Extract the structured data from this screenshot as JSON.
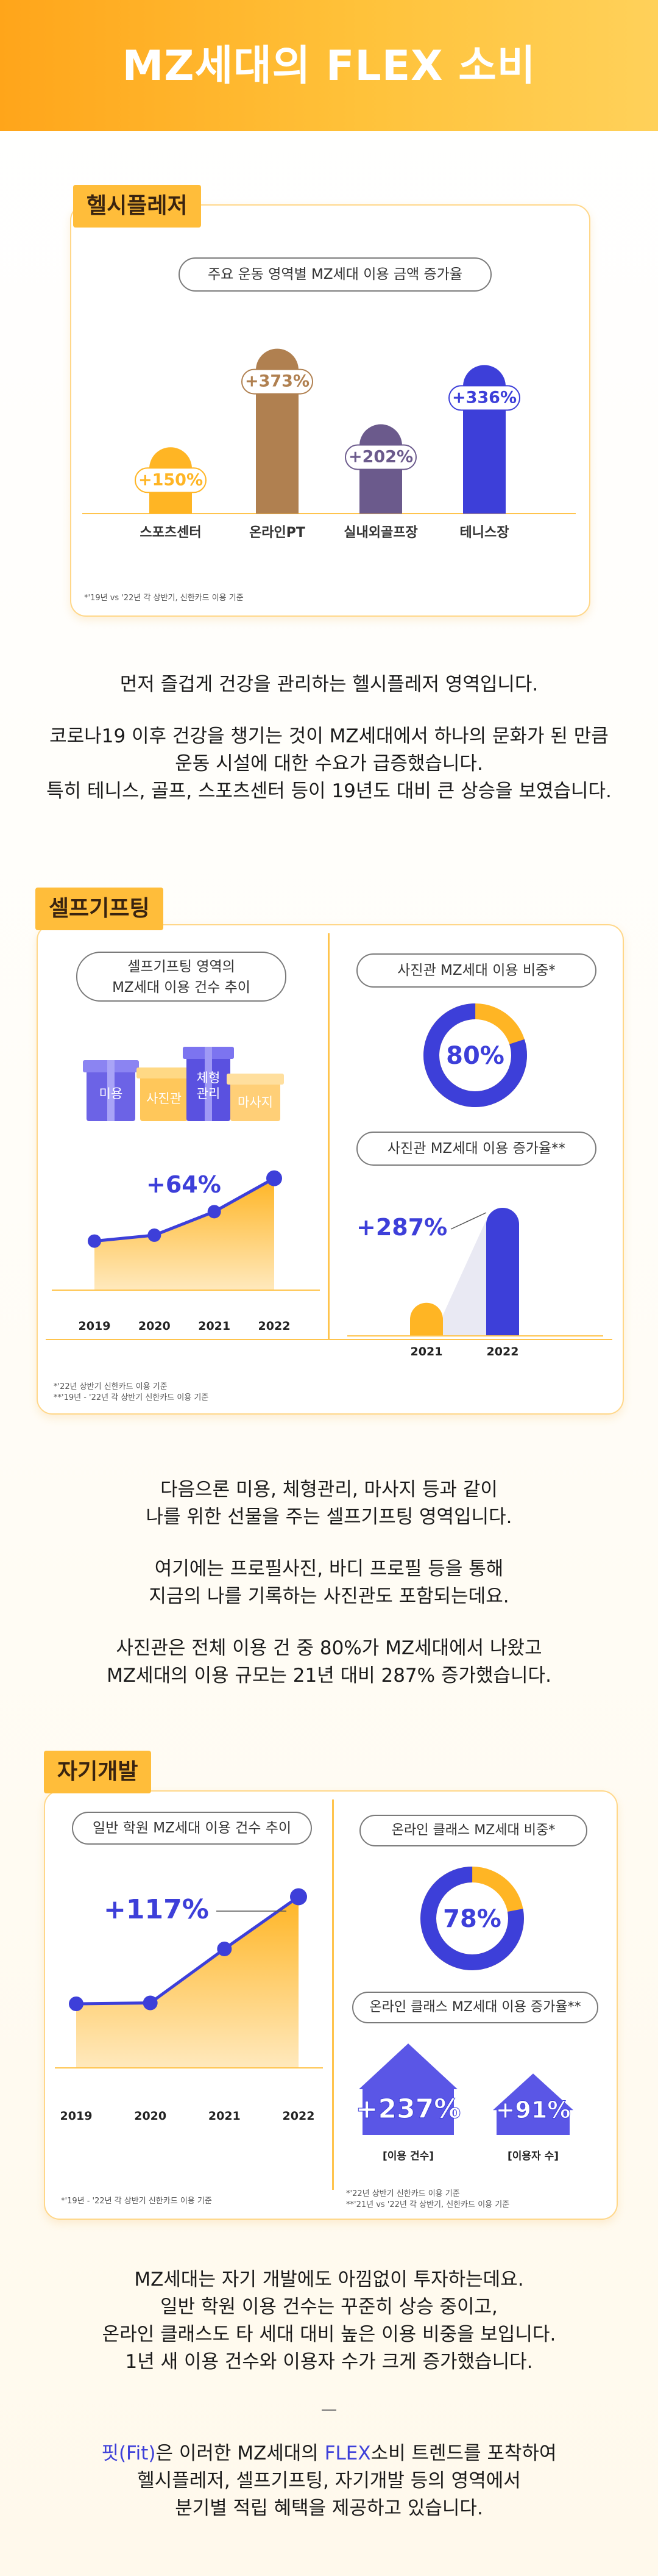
{
  "page": {
    "title": "MZ세대의 FLEX 소비"
  },
  "colors": {
    "accent_orange": "#ffb524",
    "accent_blue": "#3d3fd9",
    "accent_purple": "#6b5a8c",
    "accent_brown": "#b08050"
  },
  "sections": {
    "health": {
      "tag": "헬시플레저",
      "pill": "주요 운동 영역별 MZ세대 이용 금액 증가율",
      "note": "*'19년 vs '22년 각 상반기, 신한카드 이용 기준",
      "text": [
        "먼저 즐겁게 건강을 관리하는 헬시플레저 영역입니다.",
        "코로나19 이후 건강을 챙기는 것이 MZ세대에서 하나의 문화가 된 만큼",
        "운동 시설에 대한 수요가 급증했습니다.",
        "특히 테니스, 골프, 스포츠센터 등이 19년도 대비 큰 상승을 보였습니다."
      ]
    },
    "self_gift": {
      "tag": "셀프기프팅",
      "pill_left": [
        "셀프기프팅 영역의",
        "MZ세대 이용 건수 추이"
      ],
      "gifts": [
        "미용",
        "사진관",
        "체형관리",
        "마사지"
      ],
      "pill_ratio": "사진관 MZ세대 이용 비중*",
      "pill_growth": "사진관 MZ세대 이용 증가율**",
      "note": [
        "*'22년 상반기 신한카드 이용 기준",
        "**'19년 - '22년 각 상반기 신한카드 이용 기준"
      ],
      "text": [
        "다음으론 미용, 체형관리, 마사지 등과 같이",
        "나를 위한 선물을 주는 셀프기프팅 영역입니다.",
        "여기에는 프로필사진, 바디 프로필 등을 통해",
        "지금의 나를 기록하는 사진관도 포함되는데요.",
        "사진관은 전체 이용 건 중 80%가 MZ세대에서 나왔고",
        "MZ세대의 이용 규모는 21년 대비 287% 증가했습니다."
      ]
    },
    "self_dev": {
      "tag": "자기개발",
      "pill_left": "일반 학원 MZ세대 이용 건수 추이",
      "pill_ratio": "온라인 클래스 MZ세대 비중*",
      "pill_growth": "온라인 클래스 MZ세대 이용 증가율**",
      "note_left": "*'19년 - '22년 각 상반기 신한카드 이용 기준",
      "note_right": [
        "*'22년 상반기 신한카드 이용 기준",
        "**'21년 vs '22년 각 상반기, 신한카드 이용 기준"
      ],
      "text": [
        "MZ세대는 자기 개발에도 아낌없이 투자하는데요.",
        "일반 학원 이용 건수는 꾸준히 상승 중이고,",
        "온라인 클래스도 타 세대 대비 높은 이용 비중을 보입니다.",
        "1년 새 이용 건수와 이용자 수가 크게 증가했습니다."
      ]
    },
    "closing": {
      "prefix": "핏(Fit)",
      "mid1": "은 이러한 MZ세대의 ",
      "flex": "FLEX",
      "mid2": "소비 트렌드를 포착하여",
      "line2": "헬시플레저, 셀프기프팅, 자기개발 등의 영역에서",
      "line3": "분기별 적립 혜택을 제공하고 있습니다."
    }
  },
  "chart_data": [
    {
      "type": "bar",
      "title": "주요 운동 영역별 MZ세대 이용 금액 증가율",
      "categories": [
        "스포츠센터",
        "온라인PT",
        "실내외골프장",
        "테니스장"
      ],
      "values": [
        150,
        373,
        202,
        336
      ],
      "labels": [
        "+150%",
        "+373%",
        "+202%",
        "+336%"
      ],
      "colors": [
        "#ffb524",
        "#b08050",
        "#6b5a8c",
        "#3d3fd9"
      ],
      "unit": "%"
    },
    {
      "type": "area",
      "title": "셀프기프팅 영역의 MZ세대 이용 건수 추이",
      "x": [
        "2019",
        "2020",
        "2021",
        "2022"
      ],
      "y": [
        1.0,
        1.06,
        1.3,
        1.64
      ],
      "annotation": "+64%"
    },
    {
      "type": "pie",
      "title": "사진관 MZ세대 이용 비중*",
      "value": 80,
      "label": "80%"
    },
    {
      "type": "bar",
      "title": "사진관 MZ세대 이용 증가율**",
      "categories": [
        "2021",
        "2022"
      ],
      "values": [
        1,
        3.87
      ],
      "annotation": "+287%"
    },
    {
      "type": "area",
      "title": "일반 학원 MZ세대 이용 건수 추이",
      "x": [
        "2019",
        "2020",
        "2021",
        "2022"
      ],
      "y": [
        1.0,
        1.01,
        1.6,
        2.17
      ],
      "annotation": "+117%"
    },
    {
      "type": "pie",
      "title": "온라인 클래스 MZ세대 비중*",
      "value": 78,
      "label": "78%"
    },
    {
      "type": "bar",
      "title": "온라인 클래스 MZ세대 이용 증가율**",
      "categories": [
        "이용 건수",
        "이용자 수"
      ],
      "values": [
        237,
        91
      ],
      "labels": [
        "+237%",
        "+91%"
      ]
    }
  ]
}
